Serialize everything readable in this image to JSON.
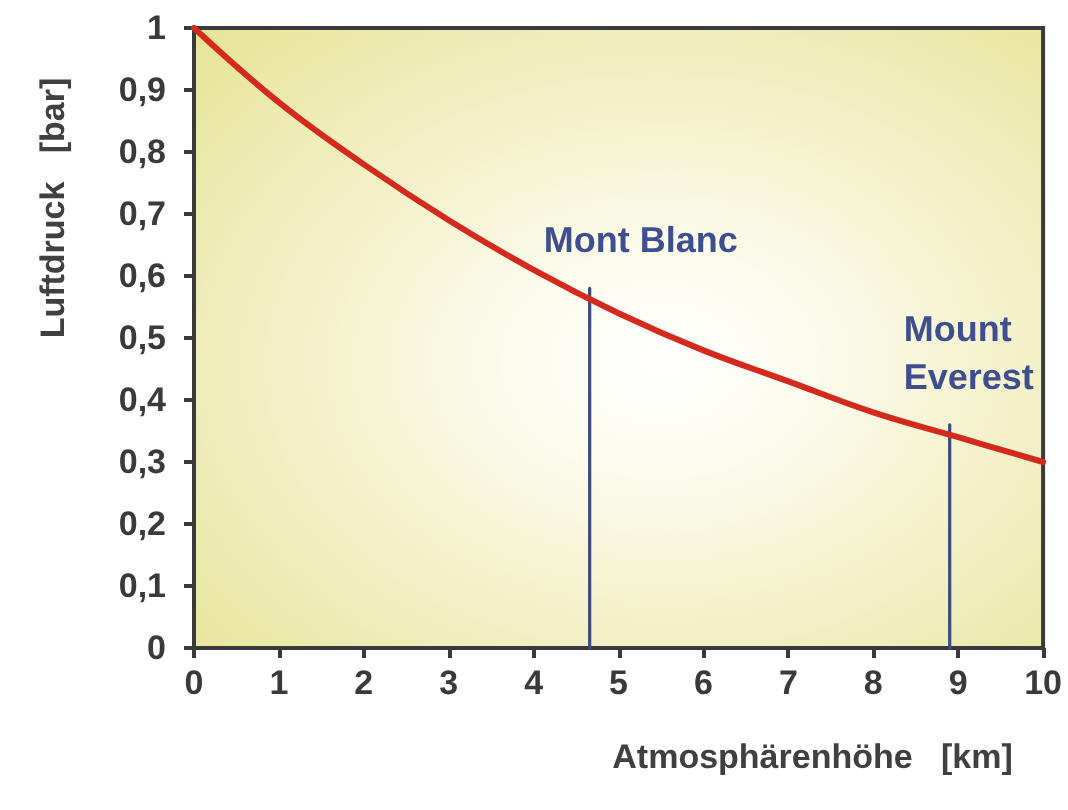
{
  "chart_data": {
    "type": "line",
    "xlabel": "Atmosphärenhöhe   [km]",
    "ylabel": "Luftdruck   [bar]",
    "xlim": [
      0,
      10
    ],
    "xticks": [
      0,
      1,
      2,
      3,
      4,
      5,
      6,
      7,
      8,
      9,
      10
    ],
    "ylim": [
      0,
      1
    ],
    "yticks": [
      0,
      {
        "value": 0.1,
        "label": "0,1"
      },
      {
        "value": 0.2,
        "label": "0,2"
      },
      {
        "value": 0.3,
        "label": "0,3"
      },
      {
        "value": 0.4,
        "label": "0,4"
      },
      {
        "value": 0.5,
        "label": "0,5"
      },
      {
        "value": 0.6,
        "label": "0,6"
      },
      {
        "value": 0.7,
        "label": "0,7"
      },
      {
        "value": 0.8,
        "label": "0,8"
      },
      {
        "value": 0.9,
        "label": "0,9"
      },
      1
    ],
    "grid": false,
    "marker": "none",
    "series": [
      {
        "color": "#d42a1e",
        "x": [
          0,
          1,
          2,
          3,
          4,
          5,
          6,
          7,
          8,
          9,
          10
        ],
        "values": [
          1,
          0.88,
          0.78,
          0.69,
          0.61,
          0.54,
          0.48,
          0.43,
          0.38,
          0.34,
          0.3
        ]
      },
      {
        "color": "#3c4a7c",
        "x": [
          4.66,
          4.66
        ],
        "values": [
          0,
          0.58
        ]
      },
      {
        "color": "#3c4a7c",
        "x": [
          8.9,
          8.9
        ],
        "values": [
          0,
          0.36
        ]
      }
    ],
    "annotations": [
      {
        "text": "Mont Blanc",
        "x": 4.66,
        "y": 0.58
      },
      {
        "text": "Mount Everest",
        "x": 8.9,
        "y": 0.36
      }
    ]
  }
}
